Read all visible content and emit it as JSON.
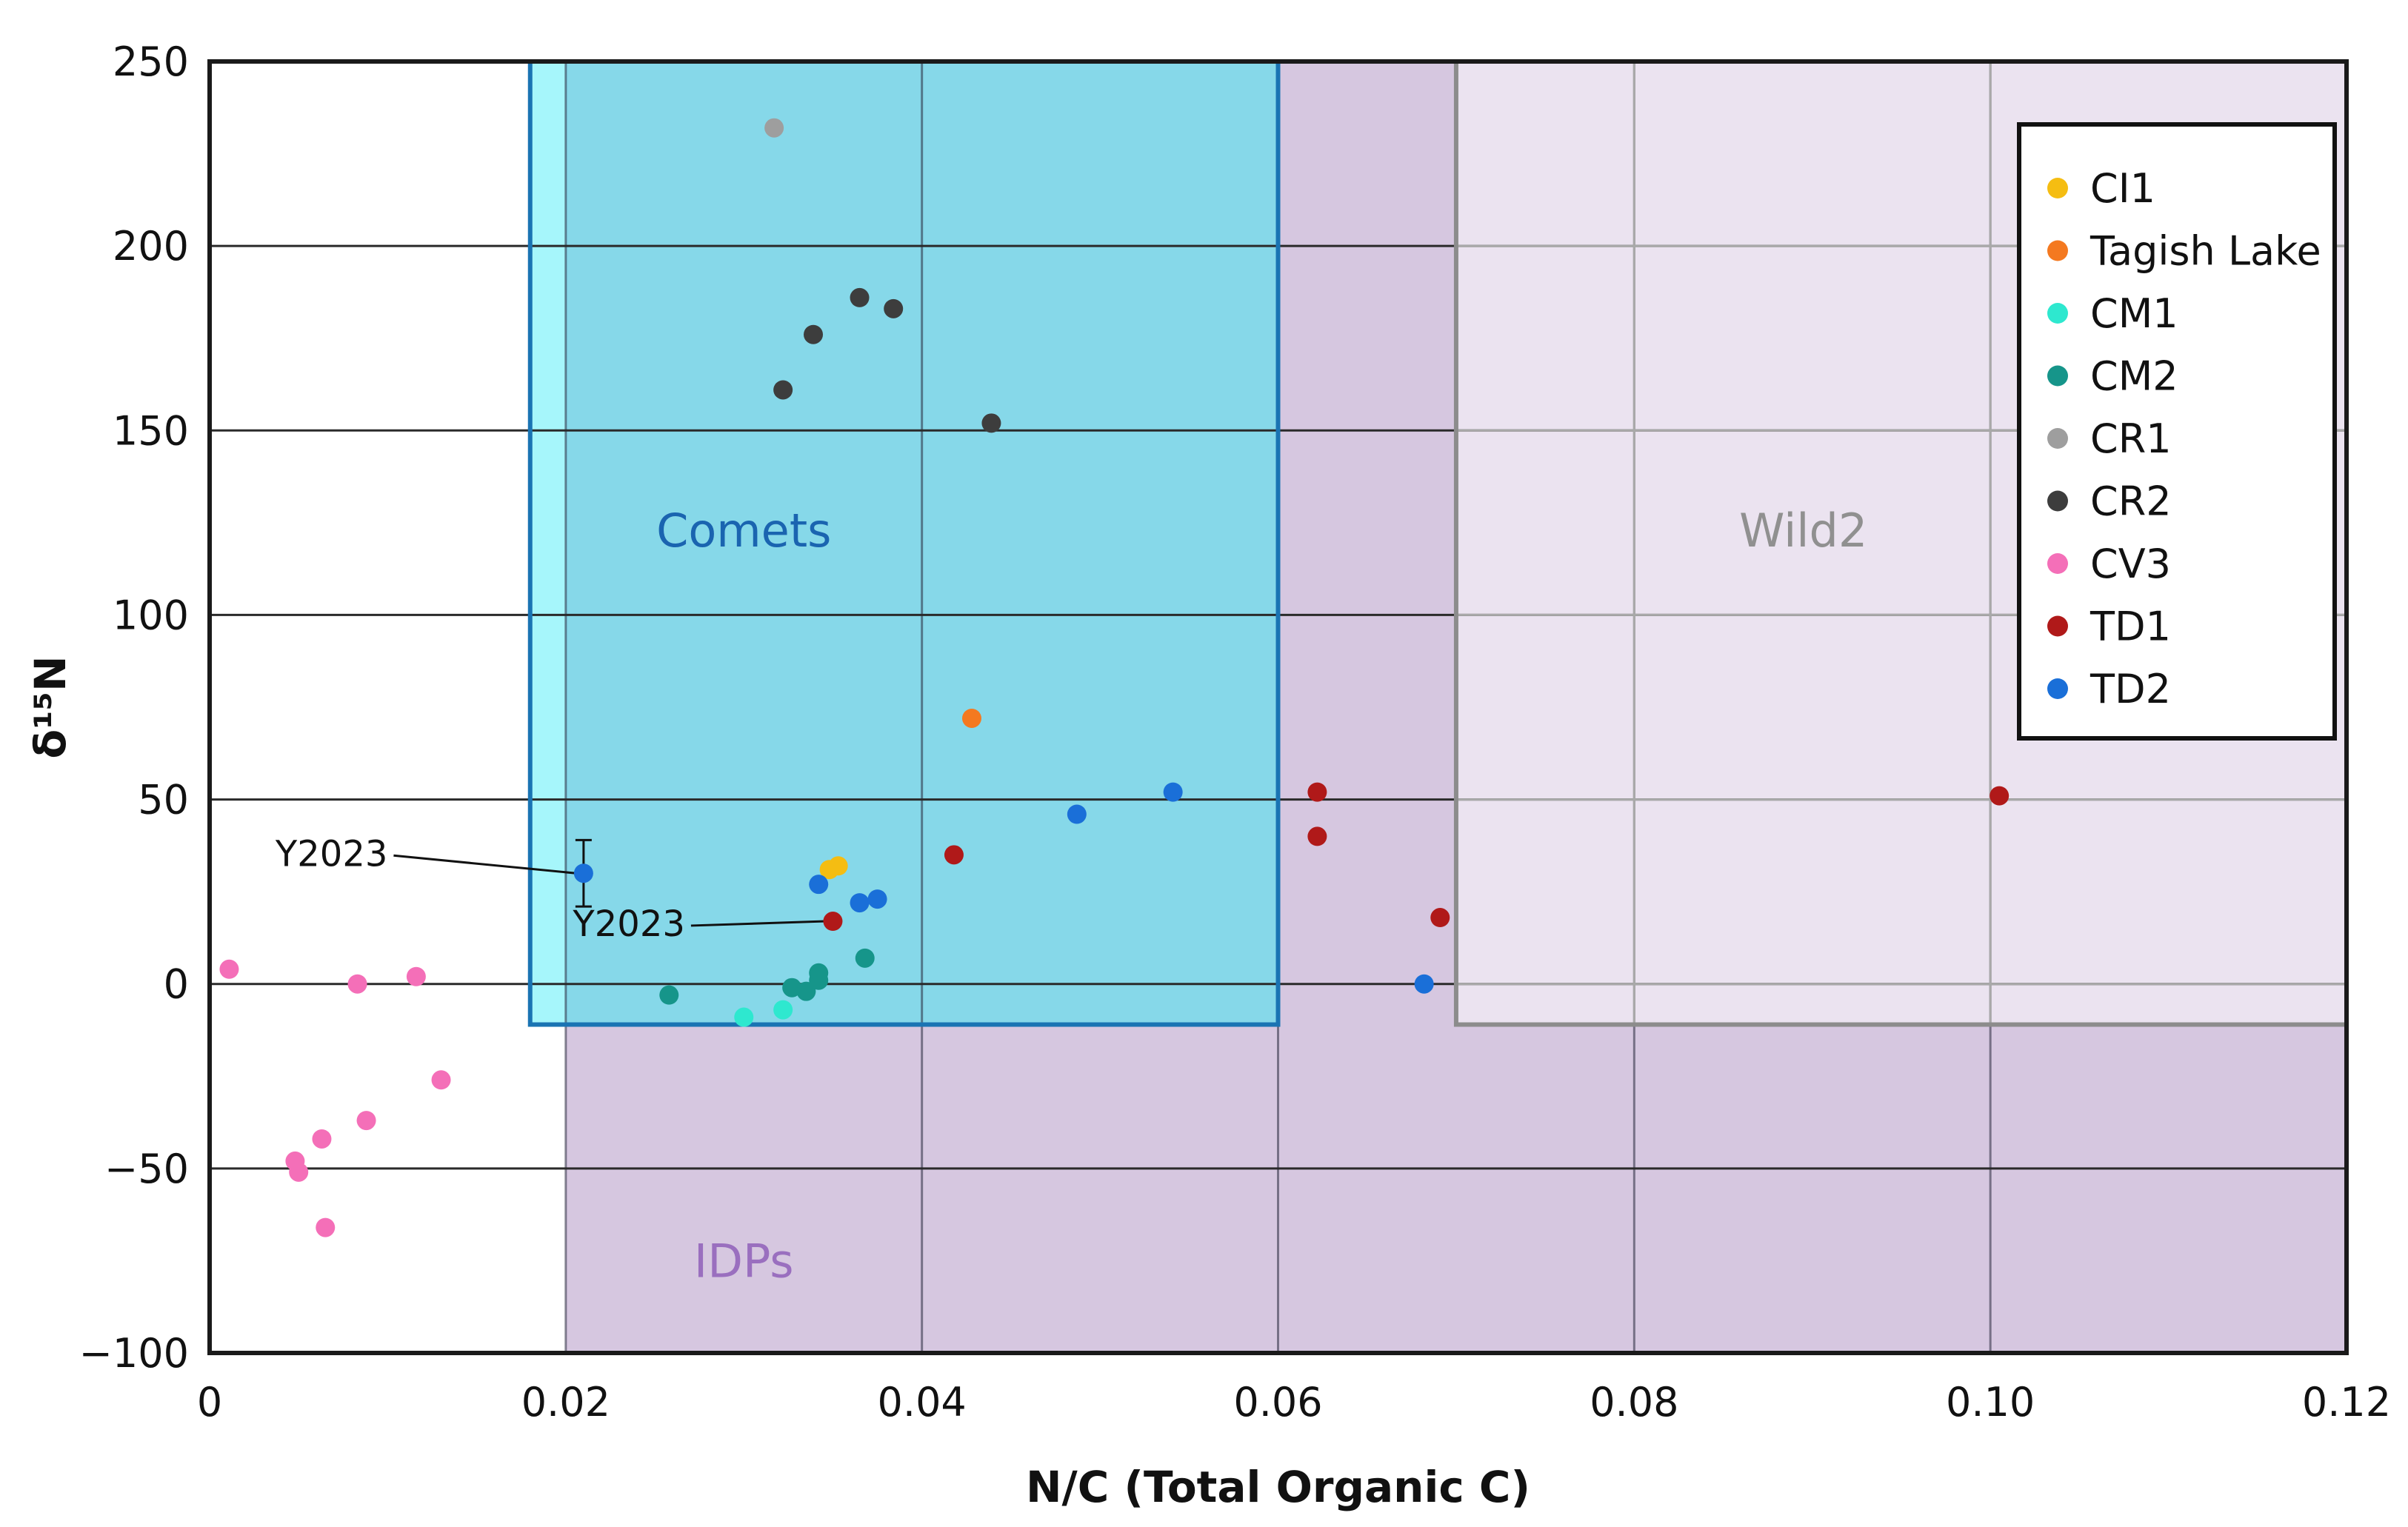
{
  "chart_data": {
    "type": "scatter",
    "title": "",
    "xlabel": "N/C (Total Organic C)",
    "ylabel": "δ¹⁵N",
    "xlim": [
      0,
      0.12
    ],
    "ylim": [
      -100,
      250
    ],
    "x_ticks": [
      {
        "value": 0,
        "label": "0"
      },
      {
        "value": 0.02,
        "label": "0.02"
      },
      {
        "value": 0.04,
        "label": "0.04"
      },
      {
        "value": 0.06,
        "label": "0.06"
      },
      {
        "value": 0.08,
        "label": "0.08"
      },
      {
        "value": 0.1,
        "label": "0.10"
      },
      {
        "value": 0.12,
        "label": "0.12"
      }
    ],
    "y_ticks": [
      {
        "value": 250,
        "label": "250"
      },
      {
        "value": 200,
        "label": "200"
      },
      {
        "value": 150,
        "label": "150"
      },
      {
        "value": 100,
        "label": "100"
      },
      {
        "value": 50,
        "label": "50"
      },
      {
        "value": 0,
        "label": "0"
      },
      {
        "value": -50,
        "label": "−50"
      },
      {
        "value": -100,
        "label": "−100"
      }
    ],
    "grid": true,
    "legend_position": "top-right",
    "regions": [
      {
        "name": "IDPs",
        "x_range": [
          0.02,
          0.12
        ],
        "y_range": [
          -100,
          250
        ],
        "fill": "#d6c7e0",
        "stroke": "none",
        "label": "IDPs",
        "label_color": "#9a6fbf",
        "label_x": 0.03,
        "label_y": -76
      },
      {
        "name": "Wild2",
        "x_range": [
          0.07,
          0.12
        ],
        "y_range": [
          -11,
          250
        ],
        "fill": "#ebe3f0",
        "stroke": "#8c8c8c",
        "label": "Wild2",
        "label_color": "#909090",
        "label_x": 0.0895,
        "label_y": 122
      },
      {
        "name": "Comets",
        "x_range": [
          0.018,
          0.06
        ],
        "y_range": [
          -11,
          250
        ],
        "fill": "#86d8e9",
        "stroke": "#1a74b3",
        "label": "Comets",
        "label_color": "#1a64b0",
        "label_x": 0.03,
        "label_y": 122
      }
    ],
    "series": [
      {
        "name": "CI1",
        "color": "#f5bd12",
        "points": [
          [
            0.0348,
            31
          ],
          [
            0.0353,
            32
          ]
        ]
      },
      {
        "name": "Tagish Lake",
        "color": "#f47920",
        "points": [
          [
            0.0428,
            72
          ]
        ]
      },
      {
        "name": "CM1",
        "color": "#2ee8cf",
        "points": [
          [
            0.03,
            -9
          ],
          [
            0.0322,
            -7
          ]
        ]
      },
      {
        "name": "CM2",
        "color": "#16958a",
        "points": [
          [
            0.0258,
            -3
          ],
          [
            0.0327,
            -1
          ],
          [
            0.0335,
            -2
          ],
          [
            0.0342,
            1
          ],
          [
            0.0342,
            3
          ],
          [
            0.0368,
            7
          ]
        ]
      },
      {
        "name": "CR1",
        "color": "#9e9e9e",
        "points": [
          [
            0.0317,
            232
          ]
        ]
      },
      {
        "name": "CR2",
        "color": "#3d3d3d",
        "points": [
          [
            0.0322,
            161
          ],
          [
            0.0339,
            176
          ],
          [
            0.0365,
            186
          ],
          [
            0.0384,
            183
          ],
          [
            0.0439,
            152
          ]
        ]
      },
      {
        "name": "CV3",
        "color": "#f46fb8",
        "points": [
          [
            0.0011,
            4
          ],
          [
            0.0083,
            0
          ],
          [
            0.0116,
            2
          ],
          [
            0.013,
            -26
          ],
          [
            0.0048,
            -48
          ],
          [
            0.005,
            -51
          ],
          [
            0.0063,
            -42
          ],
          [
            0.0088,
            -37
          ],
          [
            0.0065,
            -66
          ]
        ]
      },
      {
        "name": "TD1",
        "color": "#b01919",
        "points": [
          [
            0.035,
            17
          ],
          [
            0.0418,
            35
          ],
          [
            0.0622,
            52
          ],
          [
            0.0622,
            40
          ],
          [
            0.0691,
            18
          ],
          [
            0.1005,
            51
          ]
        ]
      },
      {
        "name": "TD2",
        "color": "#1a6fd8",
        "points": [
          [
            0.021,
            30
          ],
          [
            0.0342,
            27
          ],
          [
            0.0365,
            22
          ],
          [
            0.0375,
            23
          ],
          [
            0.0487,
            46
          ],
          [
            0.0541,
            52
          ],
          [
            0.0682,
            0
          ]
        ]
      }
    ],
    "error_bars": [
      {
        "x": 0.021,
        "y": 30,
        "y_low": 21,
        "y_high": 39
      }
    ],
    "annotations": [
      {
        "text": "Y2023",
        "target_x": 0.021,
        "target_y": 30,
        "text_x": 0.01,
        "text_y": 32
      },
      {
        "text": "Y2023",
        "target_x": 0.035,
        "target_y": 17,
        "text_x": 0.0267,
        "text_y": 13
      }
    ]
  }
}
